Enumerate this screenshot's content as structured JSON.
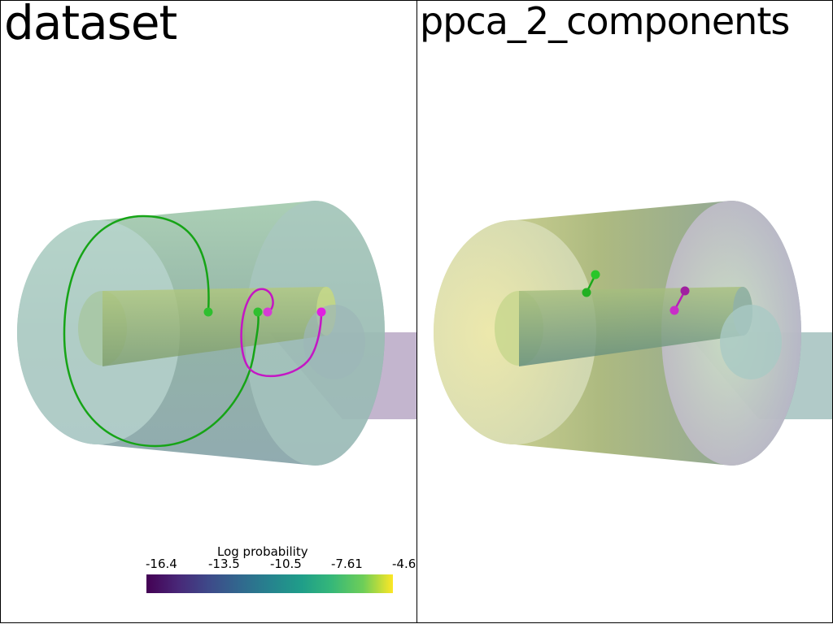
{
  "panels": {
    "left": {
      "title": "dataset"
    },
    "right": {
      "title": "ppca_2_components"
    }
  },
  "colorbar": {
    "title": "Log probability",
    "colormap": "viridis",
    "ticks": [
      "-16.4",
      "-13.5",
      "-10.5",
      "-7.61",
      "-4.6"
    ],
    "range": [
      -16.4,
      -4.6
    ]
  },
  "colors": {
    "series_green": "#16b116",
    "series_magenta": "#d616d6",
    "shell_left": "#7fb8a8",
    "shell_right": "#c9d79a",
    "tail_plane": "#b9a8c6"
  }
}
